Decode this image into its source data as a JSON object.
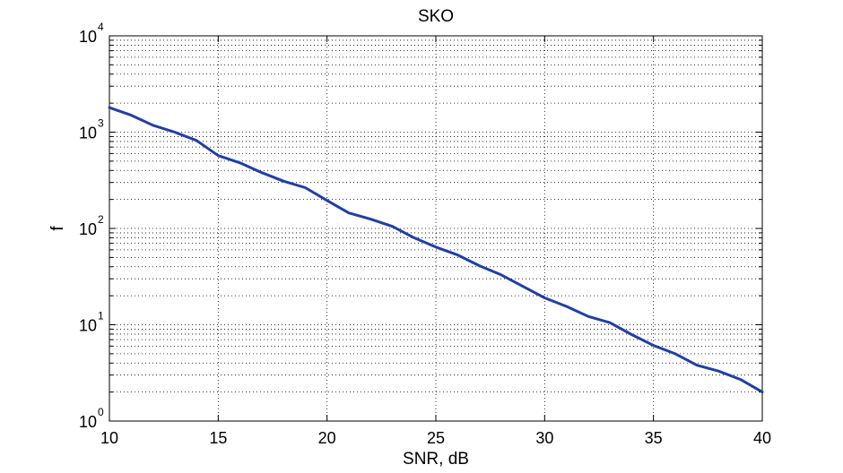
{
  "chart_data": {
    "type": "line",
    "title": "SKO",
    "xlabel": "SNR, dB",
    "ylabel": "f",
    "xlim": [
      10,
      40
    ],
    "ylim": [
      1,
      10000
    ],
    "yscale": "log",
    "grid": "on (major and minor, dotted)",
    "x_ticks": [
      "10",
      "15",
      "20",
      "25",
      "30",
      "35",
      "40"
    ],
    "y_ticks": [
      {
        "base": "10",
        "exp": "0"
      },
      {
        "base": "10",
        "exp": "1"
      },
      {
        "base": "10",
        "exp": "2"
      },
      {
        "base": "10",
        "exp": "3"
      },
      {
        "base": "10",
        "exp": "4"
      }
    ],
    "series": [
      {
        "color": "#1f3fa6",
        "x": [
          10,
          11,
          12,
          13,
          14,
          15,
          16,
          17,
          18,
          19,
          20,
          21,
          22,
          23,
          24,
          25,
          26,
          27,
          28,
          29,
          30,
          31,
          32,
          33,
          34,
          35,
          36,
          37,
          38,
          39,
          40
        ],
        "y": [
          1800,
          1500,
          1180,
          1000,
          820,
          570,
          480,
          380,
          310,
          265,
          195,
          145,
          125,
          105,
          80,
          64,
          53,
          41,
          33,
          25,
          19,
          15.5,
          12.2,
          10.5,
          7.9,
          6.1,
          5.0,
          3.8,
          3.3,
          2.7,
          2.0
        ]
      }
    ]
  }
}
